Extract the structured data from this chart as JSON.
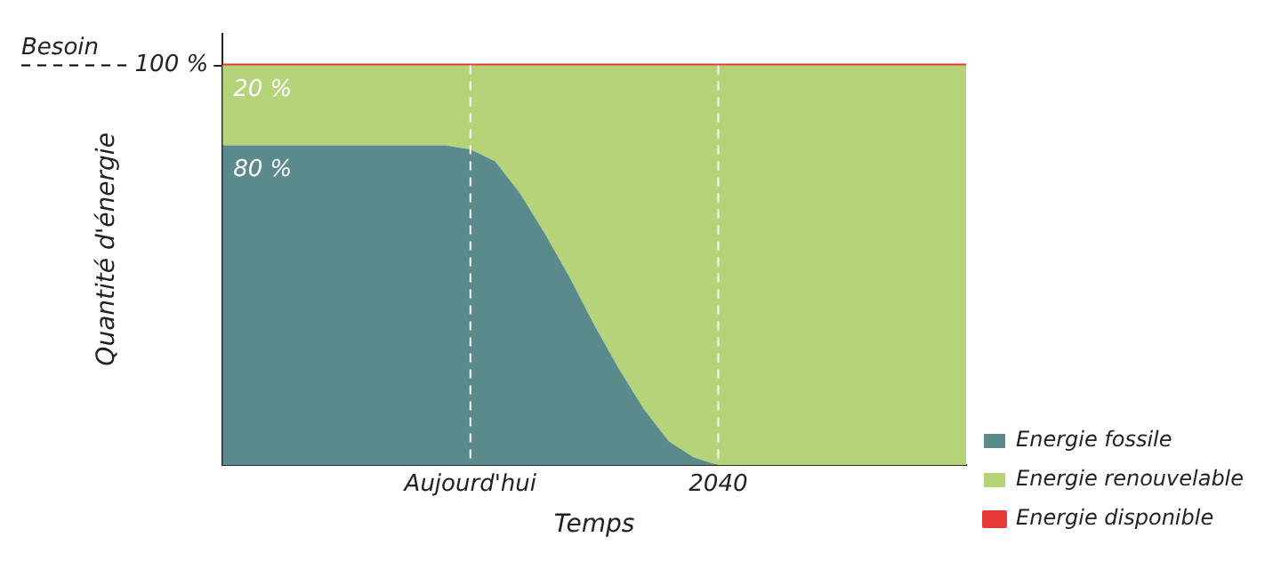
{
  "chart_data": {
    "type": "area",
    "xlabel": "Temps",
    "ylabel": "Quantité d'énergie",
    "categories": [
      null,
      null,
      null,
      null,
      null,
      null,
      null,
      null,
      null,
      null,
      "Aujourd'hui",
      null,
      null,
      null,
      null,
      null,
      null,
      null,
      null,
      null,
      "2040",
      null,
      null,
      null,
      null,
      null,
      null,
      null,
      null,
      null,
      null
    ],
    "stacked": true,
    "series": [
      {
        "name": "Energie fossile",
        "color": "#5a8a8c",
        "values": [
          80,
          80,
          80,
          80,
          80,
          80,
          80,
          80,
          80,
          80,
          79,
          76,
          68,
          58,
          47,
          35,
          24,
          14,
          6,
          2,
          0,
          0,
          0,
          0,
          0,
          0,
          0,
          0,
          0,
          0,
          0
        ],
        "value_labels": [
          "80 %",
          null,
          null,
          null,
          null,
          null,
          null,
          null,
          null,
          null,
          null,
          null,
          null,
          null,
          null,
          null,
          null,
          null,
          null,
          null,
          null,
          null,
          null,
          null,
          null,
          null,
          null,
          null,
          null,
          null,
          null
        ]
      },
      {
        "name": "Energie renouvelable",
        "color": "#b5d47a",
        "values": [
          20,
          20,
          20,
          20,
          20,
          20,
          20,
          20,
          20,
          20,
          21,
          24,
          32,
          42,
          53,
          65,
          76,
          86,
          94,
          98,
          100,
          100,
          100,
          100,
          100,
          100,
          100,
          100,
          100,
          100,
          100
        ],
        "value_labels": [
          "20 %",
          null,
          null,
          null,
          null,
          null,
          null,
          null,
          null,
          null,
          null,
          null,
          null,
          null,
          null,
          null,
          null,
          null,
          null,
          null,
          null,
          null,
          null,
          null,
          null,
          null,
          null,
          null,
          null,
          null,
          null
        ]
      },
      {
        "name": "Energie disponible",
        "type": "line",
        "color": "#e53935",
        "values": [
          100,
          100,
          100,
          100,
          100,
          100,
          100,
          100,
          100,
          100,
          100,
          100,
          100,
          100,
          100,
          100,
          100,
          100,
          100,
          100,
          100,
          100,
          100,
          100,
          100,
          100,
          100,
          100,
          100,
          100,
          100
        ]
      }
    ],
    "ylim": [
      0,
      108
    ],
    "yticks": [
      {
        "value": 100,
        "label": "100 %"
      }
    ],
    "ref_lines": [
      {
        "axis": "y",
        "value": 100,
        "label": "Besoin",
        "color": "#000000",
        "line_style": "dashed"
      },
      {
        "axis": "x",
        "value": "Aujourd'hui",
        "color": "#ffffff",
        "line_style": "dashed"
      },
      {
        "axis": "x",
        "value": "2040",
        "color": "#ffffff",
        "line_style": "dashed"
      }
    ],
    "legend": "bottom right",
    "grid": false
  }
}
